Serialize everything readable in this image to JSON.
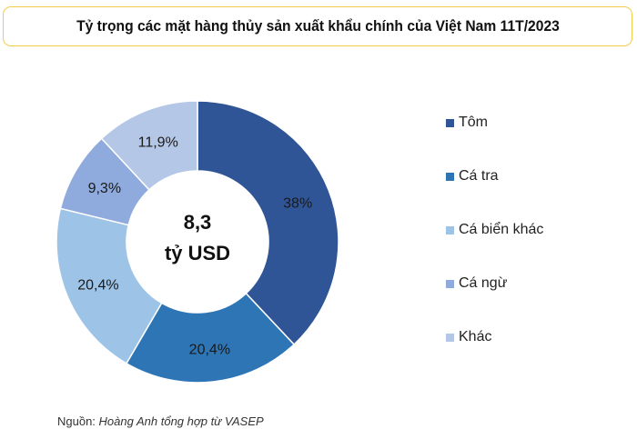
{
  "header": {
    "title": "Tỷ trọng các mặt hàng thủy sản xuất khẩu chính của Việt Nam 11T/2023"
  },
  "center": {
    "value": "8,3",
    "unit": "tỷ USD"
  },
  "legend": {
    "items": [
      {
        "label": "Tôm",
        "color": "#2f5597"
      },
      {
        "label": "Cá tra",
        "color": "#2e75b6"
      },
      {
        "label": "Cá biển khác",
        "color": "#9dc3e6"
      },
      {
        "label": "Cá ngừ",
        "color": "#8faadc"
      },
      {
        "label": "Khác",
        "color": "#b4c7e7"
      }
    ]
  },
  "footer": {
    "source_prefix": "Nguồn:",
    "source_text": "Hoàng Anh tổng hợp từ VASEP"
  },
  "chart_data": {
    "type": "pie",
    "subtype": "donut",
    "title": "Tỷ trọng các mặt hàng thủy sản xuất khẩu chính của Việt Nam 11T/2023",
    "center_label": "8,3 tỷ USD",
    "categories": [
      "Tôm",
      "Cá tra",
      "Cá biển khác",
      "Cá ngừ",
      "Khác"
    ],
    "values": [
      38,
      20.4,
      20.4,
      9.3,
      11.9
    ],
    "data_labels": [
      "38%",
      "20,4%",
      "20,4%",
      "9,3%",
      "11,9%"
    ],
    "colors": [
      "#2f5597",
      "#2e75b6",
      "#9dc3e6",
      "#8faadc",
      "#b4c7e7"
    ],
    "legend_position": "right",
    "start_angle": "top, clockwise"
  }
}
